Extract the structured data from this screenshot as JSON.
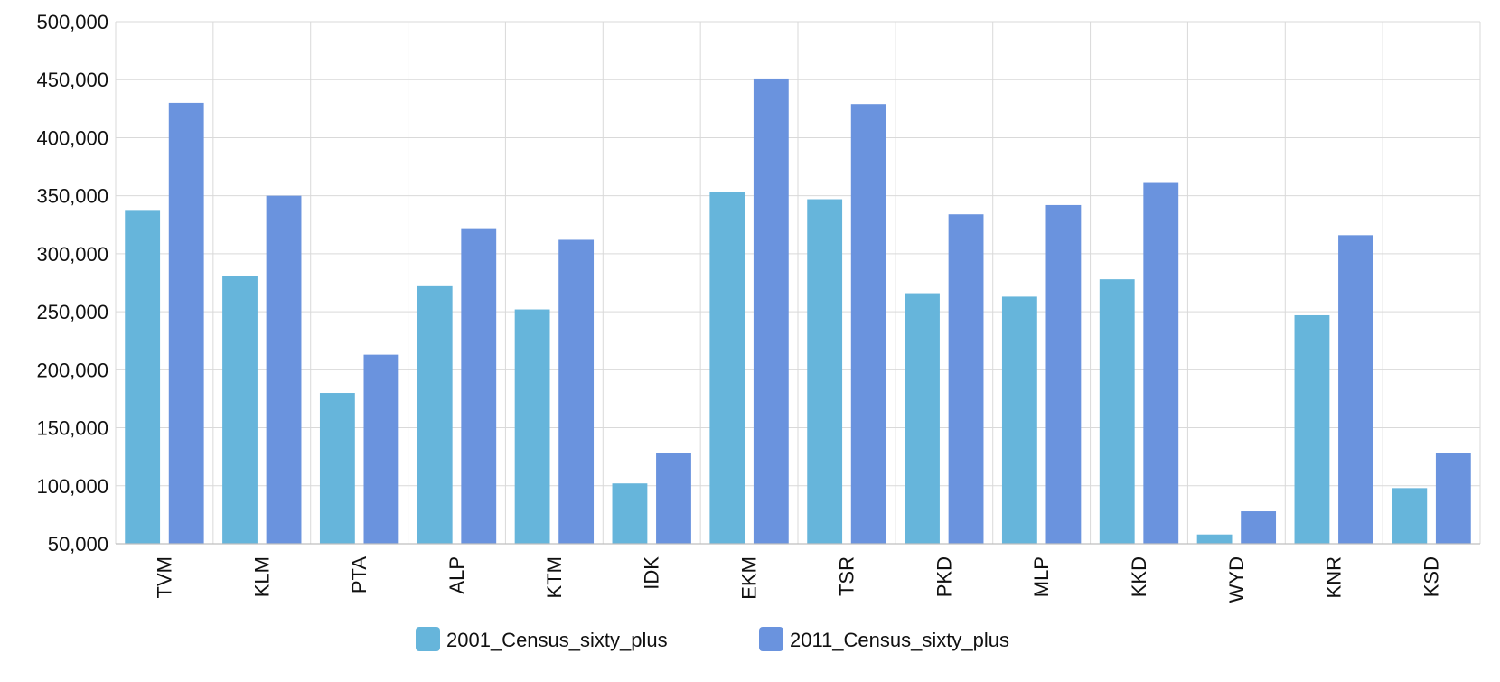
{
  "chart_data": {
    "type": "bar",
    "title": "",
    "xlabel": "",
    "ylabel": "",
    "categories": [
      "TVM",
      "KLM",
      "PTA",
      "ALP",
      "KTM",
      "IDK",
      "EKM",
      "TSR",
      "PKD",
      "MLP",
      "KKD",
      "WYD",
      "KNR",
      "KSD"
    ],
    "series": [
      {
        "name": "2001_Census_sixty_plus",
        "color": "#66b5db",
        "values": [
          337000,
          281000,
          180000,
          272000,
          252000,
          102000,
          353000,
          347000,
          266000,
          263000,
          278000,
          58000,
          247000,
          98000
        ]
      },
      {
        "name": "2011_Census_sixty_plus",
        "color": "#6a93de",
        "values": [
          430000,
          350000,
          213000,
          322000,
          312000,
          128000,
          451000,
          429000,
          334000,
          342000,
          361000,
          78000,
          316000,
          128000
        ]
      }
    ],
    "ylim": [
      50000,
      500000
    ],
    "yticks": [
      50000,
      100000,
      150000,
      200000,
      250000,
      300000,
      350000,
      400000,
      450000,
      500000
    ],
    "ytick_labels": [
      "50,000",
      "100,000",
      "150,000",
      "200,000",
      "250,000",
      "300,000",
      "350,000",
      "400,000",
      "450,000",
      "500,000"
    ],
    "grid": true,
    "legend_position": "bottom-center",
    "x_tick_rotation": "vertical"
  }
}
